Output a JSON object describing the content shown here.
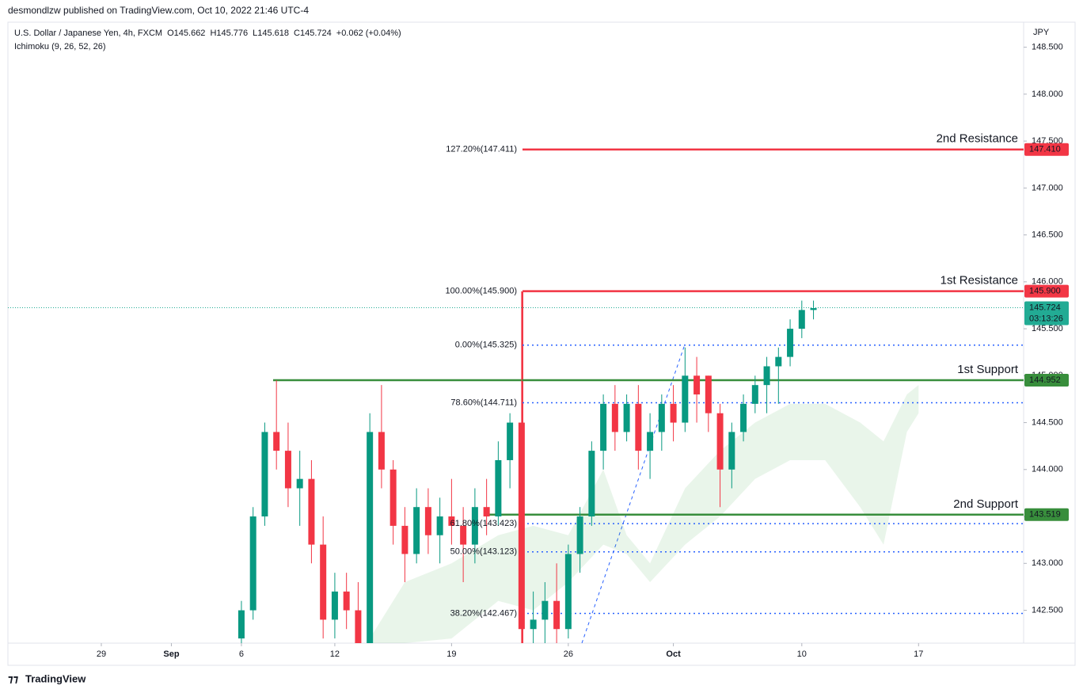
{
  "chart_data": {
    "type": "candlestick",
    "published": "desmondlzw published on TradingView.com, Oct 10, 2022 21:46 UTC-4",
    "title": "U.S. Dollar / Japanese Yen, 4h, FXCM",
    "ohlc_legend": [
      {
        "value": 145.662,
        "label": "O145.662"
      },
      {
        "value": 145.776,
        "label": "H145.776"
      },
      {
        "value": 145.618,
        "label": "L145.618"
      },
      {
        "value": 145.724,
        "label": "C145.724"
      },
      {
        "value": 0.062,
        "label": "+0.062 (+0.04%)"
      }
    ],
    "indicator": "Ichimoku (9, 26, 52, 26)",
    "y_axis_label": "JPY",
    "brand": "TradingView",
    "up_color": "#089981",
    "down_color": "#f23645",
    "x": [
      0,
      1,
      2,
      3,
      4,
      5,
      6,
      7,
      8,
      9,
      10,
      11,
      12,
      13,
      14,
      15,
      16,
      17,
      18,
      19,
      20,
      21,
      22,
      23,
      24,
      25,
      26,
      27,
      28,
      29,
      30,
      31,
      32,
      33,
      34,
      35,
      36,
      37,
      38,
      39,
      40,
      41,
      42,
      43,
      44,
      45,
      46,
      47,
      48,
      49
    ],
    "open": [
      142.2,
      142.5,
      143.5,
      144.4,
      144.2,
      143.8,
      143.9,
      143.2,
      142.4,
      142.7,
      142.5,
      142.1,
      144.4,
      144.0,
      143.4,
      143.1,
      143.6,
      143.3,
      143.5,
      143.4,
      143.2,
      143.6,
      143.5,
      144.1,
      144.5,
      142.3,
      142.4,
      142.6,
      142.3,
      143.1,
      143.5,
      144.2,
      144.7,
      144.4,
      144.7,
      144.2,
      144.4,
      144.7,
      144.5,
      145.0,
      145.0,
      144.6,
      144.0,
      144.4,
      144.7,
      144.9,
      145.1,
      145.2,
      145.5,
      145.7
    ],
    "high": [
      142.6,
      143.6,
      144.5,
      144.95,
      144.5,
      144.2,
      144.1,
      143.5,
      142.9,
      142.9,
      142.8,
      144.6,
      144.9,
      144.1,
      143.6,
      143.8,
      143.8,
      143.7,
      143.9,
      143.6,
      143.8,
      143.9,
      144.3,
      144.6,
      145.9,
      142.7,
      142.8,
      143.0,
      143.2,
      143.6,
      144.3,
      144.8,
      144.9,
      144.8,
      144.9,
      144.6,
      144.8,
      144.9,
      145.3,
      145.2,
      145.0,
      144.7,
      144.5,
      144.8,
      145.0,
      145.2,
      145.3,
      145.6,
      145.8,
      145.8
    ],
    "low": [
      142.1,
      142.4,
      143.4,
      144.0,
      143.6,
      143.4,
      143.0,
      142.2,
      142.2,
      142.3,
      141.9,
      142.0,
      143.8,
      143.2,
      142.8,
      143.0,
      143.1,
      143.0,
      143.2,
      142.8,
      143.0,
      143.3,
      143.4,
      143.8,
      141.9,
      141.8,
      142.0,
      142.0,
      142.2,
      142.9,
      143.4,
      144.0,
      144.2,
      144.3,
      144.0,
      143.9,
      144.2,
      144.3,
      144.4,
      144.5,
      144.4,
      143.6,
      143.8,
      144.3,
      144.6,
      144.6,
      144.7,
      145.1,
      145.4,
      145.6
    ],
    "close": [
      142.5,
      143.5,
      144.4,
      144.2,
      143.8,
      143.9,
      143.2,
      142.4,
      142.7,
      142.5,
      142.1,
      144.4,
      144.0,
      143.4,
      143.1,
      143.6,
      143.3,
      143.5,
      143.4,
      143.2,
      143.6,
      143.5,
      144.1,
      144.5,
      142.3,
      142.4,
      142.6,
      142.3,
      143.1,
      143.5,
      144.2,
      144.7,
      144.4,
      144.7,
      144.2,
      144.4,
      144.7,
      144.5,
      145.0,
      144.8,
      144.6,
      144.0,
      144.4,
      144.7,
      144.9,
      145.1,
      145.2,
      145.5,
      145.7,
      145.72
    ],
    "cloud": {
      "color": "#4caf50",
      "x": [
        11,
        14,
        18,
        22,
        25,
        28,
        31,
        33,
        35,
        38,
        41,
        44,
        47,
        50,
        53,
        55,
        57,
        58
      ],
      "upper": [
        142.2,
        142.8,
        143.0,
        143.3,
        143.4,
        143.3,
        144.0,
        143.3,
        143.0,
        143.8,
        144.2,
        144.5,
        144.7,
        144.7,
        144.5,
        144.3,
        144.8,
        144.9
      ],
      "lower": [
        142.15,
        142.15,
        142.2,
        142.6,
        142.5,
        142.8,
        143.2,
        143.1,
        142.8,
        143.2,
        143.5,
        143.9,
        144.1,
        144.1,
        143.6,
        143.2,
        144.4,
        144.6
      ]
    },
    "xlim": [
      -20,
      67
    ],
    "xticks": [
      {
        "value": -12,
        "label": "29"
      },
      {
        "value": -6,
        "label": "Sep"
      },
      {
        "value": 0,
        "label": "6"
      },
      {
        "value": 8,
        "label": "12"
      },
      {
        "value": 18,
        "label": "19"
      },
      {
        "value": 28,
        "label": "26"
      },
      {
        "value": 37,
        "label": "Oct"
      },
      {
        "value": 48,
        "label": "10"
      },
      {
        "value": 58,
        "label": "17"
      }
    ],
    "ylim": [
      142.15,
      148.75
    ],
    "yticks": [
      {
        "value": 142.5,
        "label": "142.500"
      },
      {
        "value": 143,
        "label": "143.000"
      },
      {
        "value": 143.5,
        "label": "143.500"
      },
      {
        "value": 144,
        "label": "144.000"
      },
      {
        "value": 144.5,
        "label": "144.500"
      },
      {
        "value": 145,
        "label": "145.000"
      },
      {
        "value": 145.5,
        "label": "145.500"
      },
      {
        "value": 146,
        "label": "146.000"
      },
      {
        "value": 146.5,
        "label": "146.500"
      },
      {
        "value": 147,
        "label": "147.000"
      },
      {
        "value": 147.5,
        "label": "147.500"
      },
      {
        "value": 148,
        "label": "148.000"
      },
      {
        "value": 148.5,
        "label": "148.500"
      }
    ],
    "fib_levels": [
      {
        "value": 147.411,
        "label": "127.20%(147.411)",
        "color": "#f23645",
        "style": "dashed"
      },
      {
        "value": 145.9,
        "label": "100.00%(145.900)",
        "color": "#f23645",
        "style": "solid"
      },
      {
        "value": 145.325,
        "label": "0.00%(145.325)",
        "color": "#2962ff",
        "style": "dotted"
      },
      {
        "value": 144.711,
        "label": "78.60%(144.711)",
        "color": "#2962ff",
        "style": "dotted"
      },
      {
        "value": 143.423,
        "label": "61.80%(143.423)",
        "color": "#2962ff",
        "style": "dotted"
      },
      {
        "value": 143.123,
        "label": "50.00%(143.123)",
        "color": "#2962ff",
        "style": "dotted"
      },
      {
        "value": 142.467,
        "label": "38.20%(142.467)",
        "color": "#2962ff",
        "style": "dotted"
      }
    ],
    "levels": [
      {
        "name": "2nd Resistance",
        "value": 147.41,
        "label": "147.410",
        "color": "#f23645"
      },
      {
        "name": "1st Resistance",
        "value": 145.9,
        "label": "145.900",
        "color": "#f23645"
      },
      {
        "name": "1st Support",
        "value": 144.952,
        "label": "144.952",
        "color": "#388e3c"
      },
      {
        "name": "2nd Support",
        "value": 143.519,
        "label": "143.519",
        "color": "#388e3c"
      }
    ],
    "last_price": {
      "value": 145.724,
      "label": "145.724",
      "countdown": "03:13:26",
      "color": "#22ab94"
    }
  }
}
